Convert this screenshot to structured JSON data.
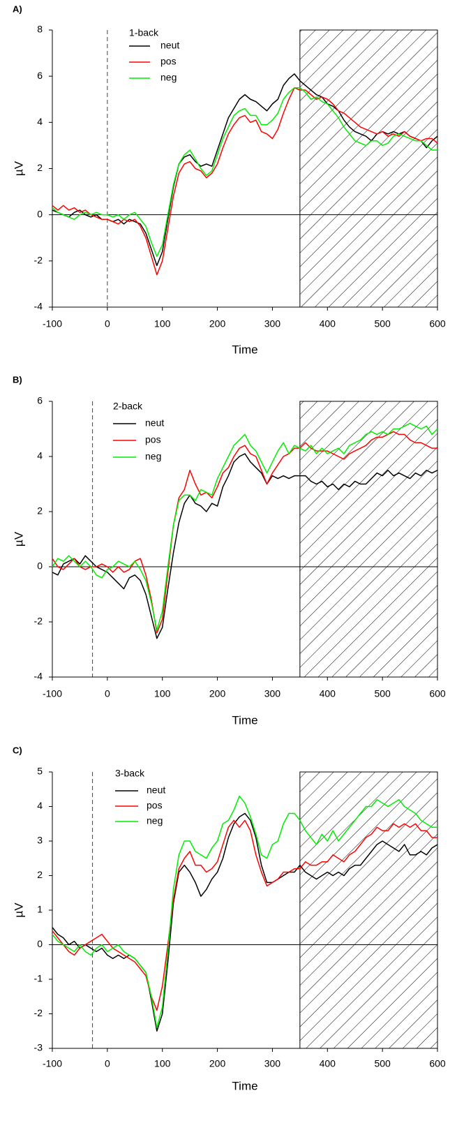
{
  "chart_data": [
    {
      "type": "line",
      "panel_label": "A)",
      "legend_title": "1-back",
      "xlabel": "Time",
      "ylabel": "µV",
      "xlim": [
        -100,
        600
      ],
      "xticks": [
        -100,
        0,
        100,
        200,
        300,
        400,
        500,
        600
      ],
      "ylim": [
        -4,
        8
      ],
      "yticks": [
        -4,
        -2,
        0,
        2,
        4,
        6,
        8
      ],
      "dashed_x": 0,
      "shade_xlim": [
        350,
        600
      ],
      "x": [
        -100,
        -90,
        -80,
        -70,
        -60,
        -50,
        -40,
        -30,
        -20,
        -10,
        0,
        10,
        20,
        30,
        40,
        50,
        60,
        70,
        80,
        90,
        100,
        110,
        120,
        130,
        140,
        150,
        160,
        170,
        180,
        190,
        200,
        210,
        220,
        230,
        240,
        250,
        260,
        270,
        280,
        290,
        300,
        310,
        320,
        330,
        340,
        350,
        360,
        370,
        380,
        390,
        400,
        410,
        420,
        430,
        440,
        450,
        460,
        470,
        480,
        490,
        500,
        510,
        520,
        530,
        540,
        550,
        560,
        570,
        580,
        590,
        600
      ],
      "series": [
        {
          "name": "neut",
          "color": "#000000",
          "values": [
            0.2,
            0.1,
            0.0,
            -0.1,
            0.1,
            0.2,
            0.0,
            -0.1,
            0.0,
            -0.2,
            -0.2,
            -0.3,
            -0.2,
            -0.4,
            -0.2,
            -0.3,
            -0.4,
            -0.8,
            -1.5,
            -2.2,
            -1.6,
            -0.2,
            1.2,
            2.2,
            2.5,
            2.6,
            2.3,
            2.1,
            2.2,
            2.1,
            2.8,
            3.5,
            4.2,
            4.6,
            5.0,
            5.2,
            5.0,
            4.9,
            4.7,
            4.5,
            4.8,
            5.0,
            5.6,
            5.9,
            6.1,
            5.8,
            5.6,
            5.4,
            5.2,
            5.1,
            4.8,
            4.7,
            4.5,
            4.1,
            3.8,
            3.6,
            3.5,
            3.4,
            3.2,
            3.5,
            3.6,
            3.5,
            3.6,
            3.5,
            3.6,
            3.4,
            3.3,
            3.2,
            2.9,
            3.2,
            3.4
          ]
        },
        {
          "name": "pos",
          "color": "#ff0000",
          "values": [
            0.4,
            0.2,
            0.4,
            0.2,
            0.3,
            0.1,
            0.2,
            0.0,
            -0.1,
            -0.2,
            -0.2,
            -0.3,
            -0.4,
            -0.2,
            -0.3,
            -0.2,
            -0.5,
            -1.0,
            -1.8,
            -2.6,
            -2.0,
            -0.6,
            0.8,
            1.8,
            2.2,
            2.3,
            2.0,
            1.9,
            1.6,
            1.8,
            2.2,
            2.9,
            3.5,
            3.9,
            4.2,
            4.3,
            4.0,
            4.1,
            3.6,
            3.5,
            3.3,
            3.7,
            4.4,
            5.0,
            5.5,
            5.4,
            5.4,
            5.2,
            5.0,
            5.1,
            5.0,
            4.8,
            4.5,
            4.4,
            4.2,
            4.0,
            3.8,
            3.7,
            3.6,
            3.5,
            3.6,
            3.4,
            3.5,
            3.4,
            3.6,
            3.4,
            3.3,
            3.2,
            3.3,
            3.3,
            3.1
          ]
        },
        {
          "name": "neg",
          "color": "#00ee00",
          "values": [
            0.3,
            0.1,
            0.0,
            -0.1,
            -0.2,
            0.0,
            0.1,
            0.0,
            0.1,
            0.0,
            0.0,
            -0.1,
            0.0,
            -0.2,
            0.0,
            0.1,
            -0.2,
            -0.5,
            -1.2,
            -1.8,
            -1.3,
            0.0,
            1.3,
            2.2,
            2.6,
            2.8,
            2.4,
            2.0,
            1.7,
            1.9,
            2.6,
            3.3,
            3.8,
            4.3,
            4.5,
            4.6,
            4.3,
            4.3,
            3.9,
            3.9,
            4.1,
            4.4,
            5.0,
            5.3,
            5.5,
            5.5,
            5.3,
            5.0,
            5.1,
            4.9,
            4.8,
            4.5,
            4.2,
            3.8,
            3.5,
            3.2,
            3.1,
            3.0,
            3.2,
            3.2,
            3.0,
            3.1,
            3.4,
            3.5,
            3.4,
            3.3,
            3.2,
            3.2,
            3.0,
            2.8,
            2.8
          ]
        }
      ]
    },
    {
      "type": "line",
      "panel_label": "B)",
      "legend_title": "2-back",
      "xlabel": "Time",
      "ylabel": "µV",
      "xlim": [
        -100,
        600
      ],
      "xticks": [
        -100,
        0,
        100,
        200,
        300,
        400,
        500,
        600
      ],
      "ylim": [
        -4,
        6
      ],
      "yticks": [
        -4,
        -2,
        0,
        2,
        4,
        6
      ],
      "dashed_x": -27,
      "shade_xlim": [
        350,
        600
      ],
      "x": [
        -100,
        -90,
        -80,
        -70,
        -60,
        -50,
        -40,
        -30,
        -20,
        -10,
        0,
        10,
        20,
        30,
        40,
        50,
        60,
        70,
        80,
        90,
        100,
        110,
        120,
        130,
        140,
        150,
        160,
        170,
        180,
        190,
        200,
        210,
        220,
        230,
        240,
        250,
        260,
        270,
        280,
        290,
        300,
        310,
        320,
        330,
        340,
        350,
        360,
        370,
        380,
        390,
        400,
        410,
        420,
        430,
        440,
        450,
        460,
        470,
        480,
        490,
        500,
        510,
        520,
        530,
        540,
        550,
        560,
        570,
        580,
        590,
        600
      ],
      "series": [
        {
          "name": "neut",
          "color": "#000000",
          "values": [
            -0.2,
            -0.3,
            0.1,
            0.2,
            0.3,
            0.1,
            0.4,
            0.2,
            0.0,
            -0.1,
            -0.2,
            -0.4,
            -0.6,
            -0.8,
            -0.4,
            -0.3,
            -0.5,
            -1.0,
            -1.8,
            -2.6,
            -2.2,
            -0.8,
            0.5,
            1.6,
            2.3,
            2.6,
            2.3,
            2.2,
            2.0,
            2.3,
            2.2,
            2.9,
            3.3,
            3.8,
            4.0,
            4.1,
            3.8,
            3.6,
            3.4,
            3.0,
            3.3,
            3.2,
            3.3,
            3.2,
            3.3,
            3.3,
            3.3,
            3.1,
            3.0,
            3.1,
            2.9,
            3.0,
            2.8,
            3.0,
            2.9,
            3.1,
            3.0,
            3.0,
            3.2,
            3.4,
            3.3,
            3.5,
            3.3,
            3.4,
            3.3,
            3.2,
            3.4,
            3.3,
            3.5,
            3.4,
            3.5
          ]
        },
        {
          "name": "pos",
          "color": "#ff0000",
          "values": [
            0.3,
            0.0,
            -0.1,
            0.1,
            0.3,
            0.0,
            -0.1,
            0.0,
            0.0,
            0.1,
            0.0,
            -0.2,
            0.0,
            -0.2,
            -0.1,
            0.2,
            0.3,
            -0.3,
            -1.2,
            -2.4,
            -1.9,
            -0.2,
            1.5,
            2.5,
            2.8,
            3.5,
            3.0,
            2.6,
            2.7,
            2.5,
            2.9,
            3.4,
            3.6,
            4.0,
            4.3,
            4.4,
            4.1,
            4.0,
            3.5,
            3.0,
            3.4,
            3.7,
            4.0,
            4.1,
            4.3,
            4.3,
            4.5,
            4.3,
            4.2,
            4.2,
            4.2,
            4.1,
            4.0,
            3.9,
            4.1,
            4.2,
            4.3,
            4.4,
            4.6,
            4.7,
            4.7,
            4.8,
            4.9,
            4.8,
            4.8,
            4.6,
            4.5,
            4.5,
            4.4,
            4.3,
            4.3
          ]
        },
        {
          "name": "neg",
          "color": "#00ee00",
          "values": [
            0.0,
            0.3,
            0.2,
            0.4,
            0.2,
            0.0,
            0.2,
            0.0,
            -0.3,
            -0.4,
            -0.1,
            0.0,
            0.2,
            0.1,
            0.0,
            0.2,
            -0.1,
            -0.5,
            -1.3,
            -2.3,
            -1.6,
            0.0,
            1.5,
            2.4,
            2.6,
            2.6,
            2.4,
            2.8,
            2.7,
            2.6,
            3.2,
            3.6,
            4.0,
            4.4,
            4.6,
            4.8,
            4.4,
            4.2,
            3.8,
            3.4,
            3.8,
            4.2,
            4.5,
            4.1,
            4.4,
            4.3,
            4.2,
            4.4,
            4.1,
            4.3,
            4.1,
            4.2,
            4.3,
            4.1,
            4.4,
            4.5,
            4.6,
            4.8,
            4.9,
            4.8,
            4.9,
            4.8,
            5.0,
            5.0,
            5.1,
            5.2,
            5.1,
            5.0,
            5.1,
            4.8,
            5.0
          ]
        }
      ]
    },
    {
      "type": "line",
      "panel_label": "C)",
      "legend_title": "3-back",
      "xlabel": "Time",
      "ylabel": "µV",
      "xlim": [
        -100,
        600
      ],
      "xticks": [
        -100,
        0,
        100,
        200,
        300,
        400,
        500,
        600
      ],
      "ylim": [
        -3,
        5
      ],
      "yticks": [
        -3,
        -2,
        -1,
        0,
        1,
        2,
        3,
        4,
        5
      ],
      "dashed_x": -27,
      "shade_xlim": [
        350,
        600
      ],
      "x": [
        -100,
        -90,
        -80,
        -70,
        -60,
        -50,
        -40,
        -30,
        -20,
        -10,
        0,
        10,
        20,
        30,
        40,
        50,
        60,
        70,
        80,
        90,
        100,
        110,
        120,
        130,
        140,
        150,
        160,
        170,
        180,
        190,
        200,
        210,
        220,
        230,
        240,
        250,
        260,
        270,
        280,
        290,
        300,
        310,
        320,
        330,
        340,
        350,
        360,
        370,
        380,
        390,
        400,
        410,
        420,
        430,
        440,
        450,
        460,
        470,
        480,
        490,
        500,
        510,
        520,
        530,
        540,
        550,
        560,
        570,
        580,
        590,
        600
      ],
      "series": [
        {
          "name": "neut",
          "color": "#000000",
          "values": [
            0.5,
            0.3,
            0.2,
            0.0,
            0.1,
            -0.1,
            0.0,
            -0.1,
            -0.2,
            -0.1,
            -0.3,
            -0.4,
            -0.3,
            -0.4,
            -0.3,
            -0.4,
            -0.6,
            -0.8,
            -1.6,
            -2.5,
            -2.0,
            -0.5,
            1.2,
            2.1,
            2.3,
            2.1,
            1.8,
            1.4,
            1.6,
            1.9,
            2.1,
            2.5,
            3.1,
            3.5,
            3.7,
            3.8,
            3.6,
            3.1,
            2.3,
            1.8,
            1.8,
            1.9,
            2.0,
            2.1,
            2.1,
            2.3,
            2.1,
            2.0,
            1.9,
            2.0,
            2.1,
            2.0,
            2.1,
            2.0,
            2.2,
            2.3,
            2.3,
            2.5,
            2.7,
            2.9,
            3.0,
            2.9,
            2.8,
            2.7,
            2.9,
            2.6,
            2.6,
            2.7,
            2.6,
            2.8,
            2.9
          ]
        },
        {
          "name": "pos",
          "color": "#ff0000",
          "values": [
            0.4,
            0.2,
            0.0,
            -0.2,
            -0.3,
            -0.1,
            0.0,
            0.1,
            0.2,
            0.3,
            0.1,
            -0.1,
            -0.2,
            -0.3,
            -0.4,
            -0.5,
            -0.7,
            -0.9,
            -1.5,
            -1.9,
            -1.2,
            0.0,
            1.3,
            2.2,
            2.5,
            2.7,
            2.3,
            2.3,
            2.1,
            2.2,
            2.4,
            2.9,
            3.4,
            3.6,
            3.4,
            3.6,
            3.3,
            2.6,
            2.1,
            1.7,
            1.8,
            1.9,
            2.1,
            2.1,
            2.2,
            2.2,
            2.4,
            2.3,
            2.3,
            2.4,
            2.4,
            2.6,
            2.5,
            2.4,
            2.6,
            2.7,
            2.9,
            3.1,
            3.2,
            3.4,
            3.3,
            3.3,
            3.5,
            3.4,
            3.5,
            3.4,
            3.5,
            3.3,
            3.3,
            3.1,
            3.1
          ]
        },
        {
          "name": "neg",
          "color": "#00ee00",
          "values": [
            0.3,
            0.1,
            0.0,
            -0.1,
            -0.2,
            0.0,
            -0.2,
            -0.3,
            -0.1,
            0.0,
            -0.2,
            -0.1,
            0.0,
            -0.2,
            -0.3,
            -0.4,
            -0.6,
            -0.8,
            -1.5,
            -2.4,
            -1.8,
            -0.2,
            1.6,
            2.6,
            3.0,
            3.0,
            2.7,
            2.6,
            2.5,
            2.8,
            3.0,
            3.5,
            3.6,
            3.9,
            4.3,
            4.1,
            3.7,
            3.2,
            2.6,
            2.5,
            2.9,
            3.0,
            3.5,
            3.8,
            3.8,
            3.6,
            3.3,
            3.1,
            2.9,
            3.2,
            3.0,
            3.3,
            3.0,
            3.2,
            3.4,
            3.6,
            3.8,
            4.0,
            4.0,
            4.2,
            4.1,
            4.0,
            4.1,
            4.2,
            4.0,
            3.9,
            3.8,
            3.6,
            3.5,
            3.4,
            3.4
          ]
        }
      ]
    }
  ]
}
